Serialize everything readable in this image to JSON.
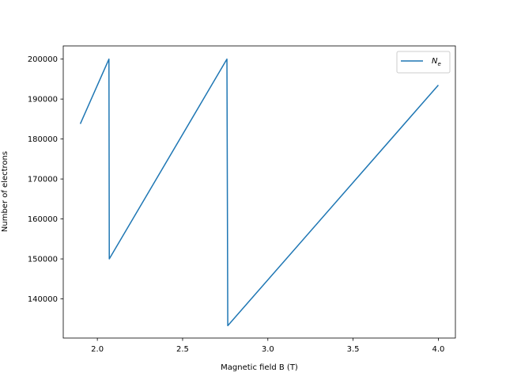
{
  "chart_data": {
    "type": "line",
    "title": "",
    "xlabel": "Magnetic field B (T)",
    "ylabel": "Number of electrons",
    "xlim": [
      1.8,
      4.1
    ],
    "ylim": [
      130200,
      203300
    ],
    "xticks": [
      2.0,
      2.5,
      3.0,
      3.5,
      4.0
    ],
    "xtick_labels": [
      "2.0",
      "2.5",
      "3.0",
      "3.5",
      "4.0"
    ],
    "yticks": [
      140000,
      150000,
      160000,
      170000,
      180000,
      190000,
      200000
    ],
    "ytick_labels": [
      "140000",
      "150000",
      "160000",
      "170000",
      "180000",
      "190000",
      "200000"
    ],
    "grid": false,
    "legend_position": "top-right",
    "series": [
      {
        "name": "N_e",
        "legend_label": "N",
        "legend_subscript": "e",
        "color": "#1f77b4",
        "x": [
          1.9,
          2.068,
          2.07,
          2.76,
          2.765,
          4.0
        ],
        "y": [
          183800,
          200000,
          150000,
          200000,
          133300,
          193500
        ]
      }
    ]
  }
}
